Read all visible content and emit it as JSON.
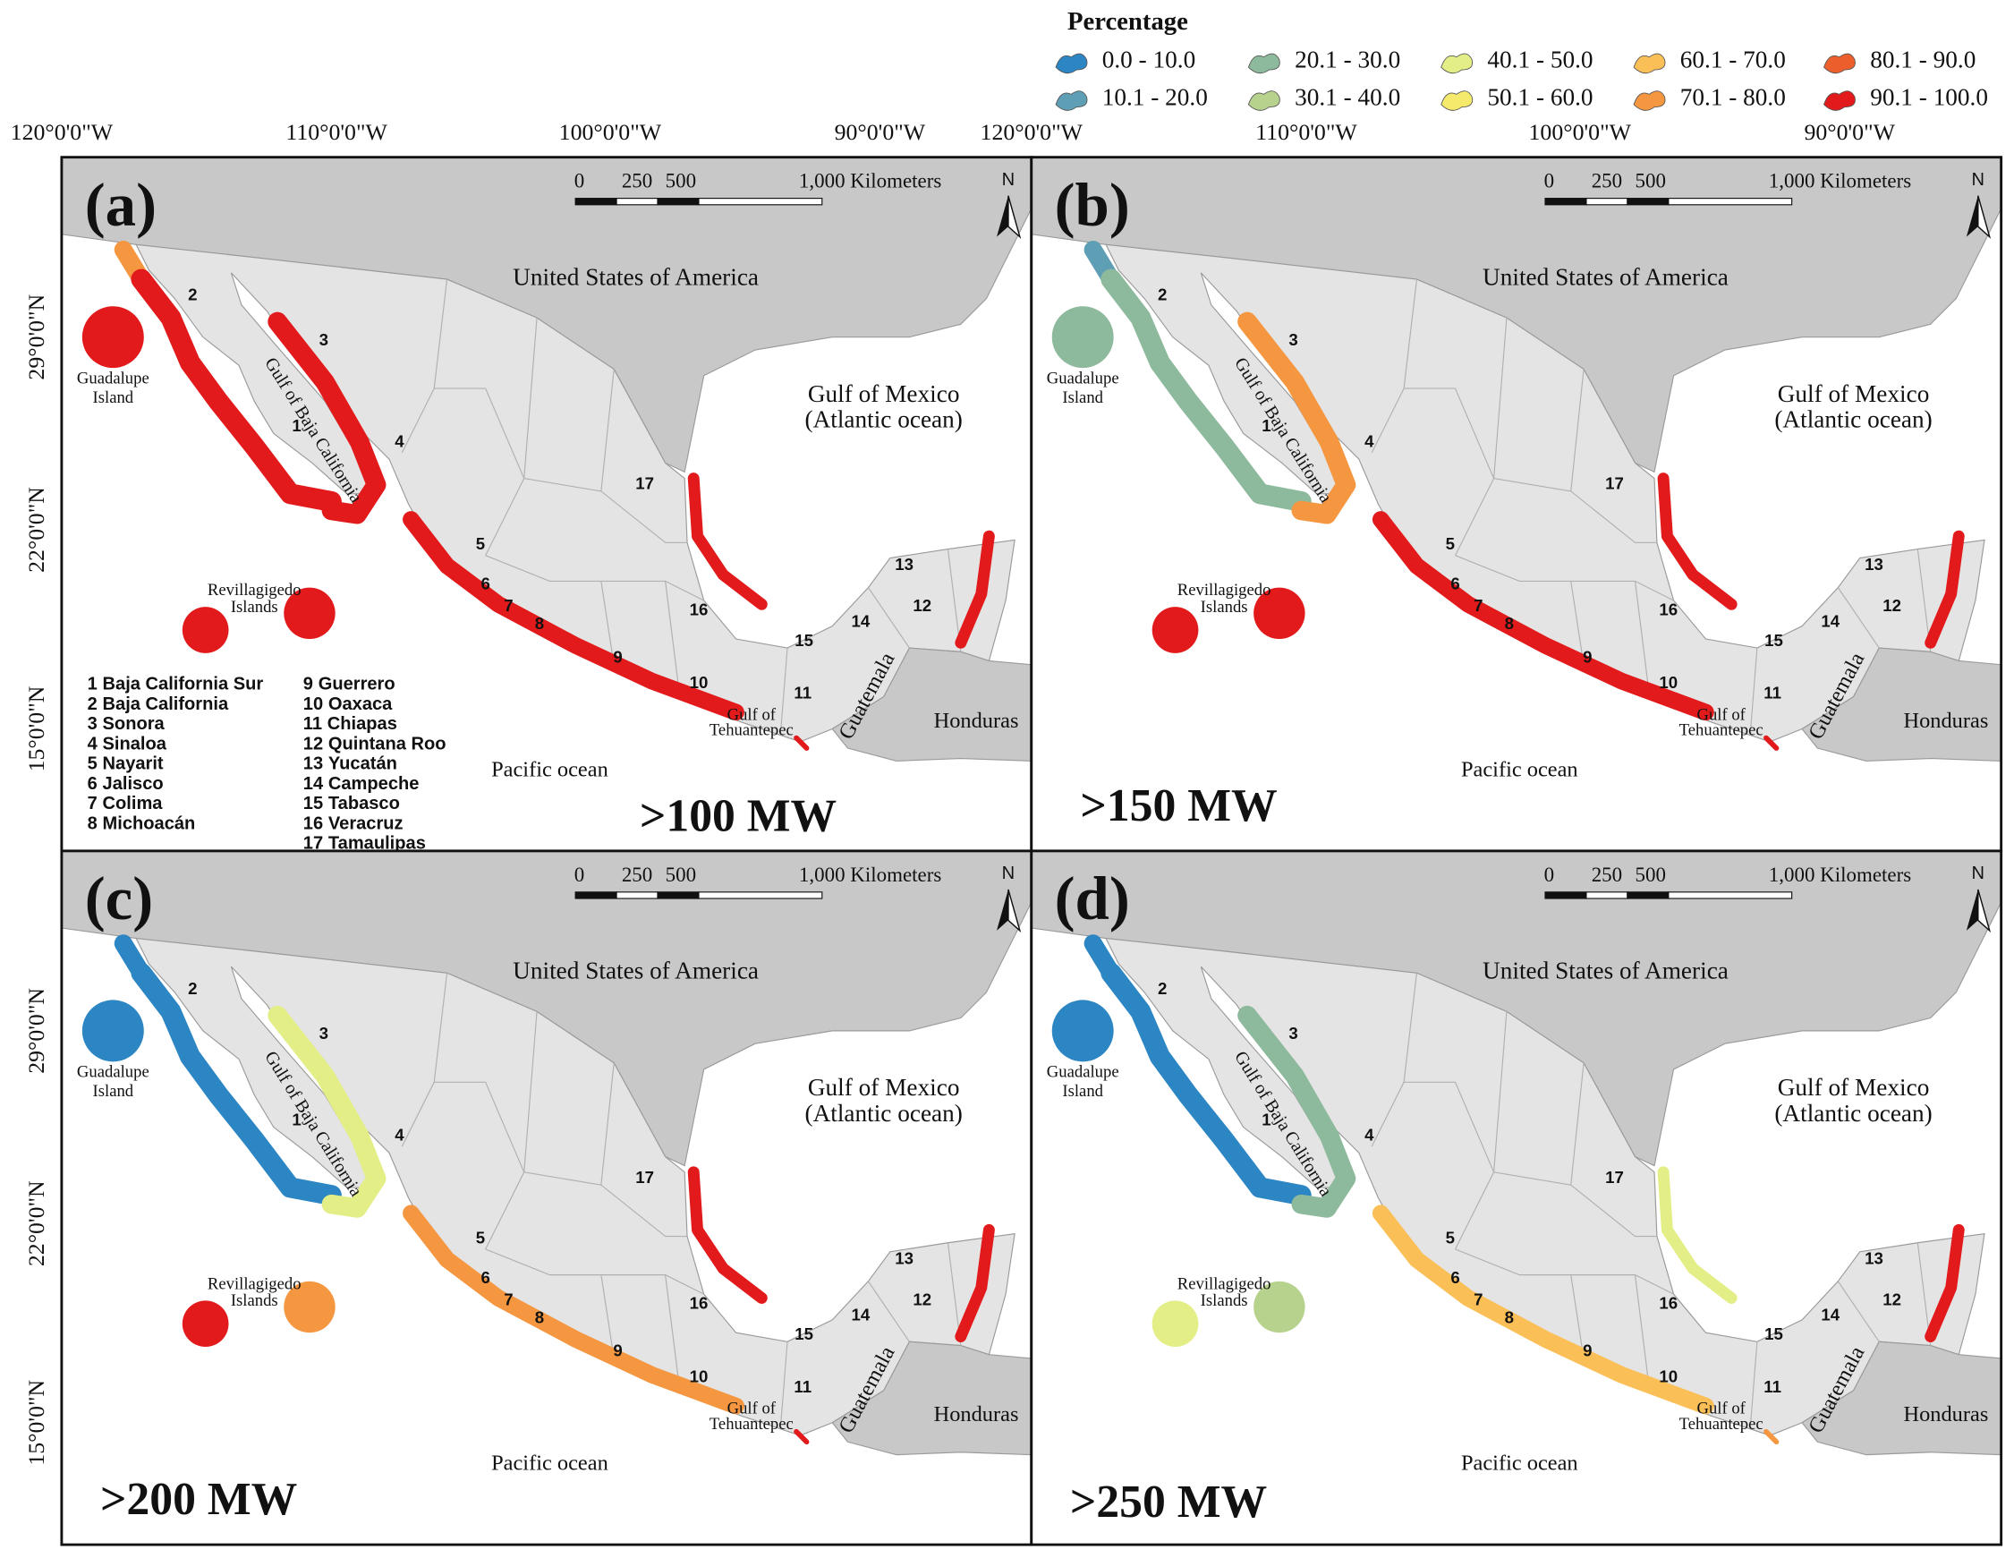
{
  "legend": {
    "title": "Percentage",
    "items": [
      {
        "label": "0.0 - 10.0",
        "color": "#2c86c4"
      },
      {
        "label": "10.1 - 20.0",
        "color": "#5f9fb5"
      },
      {
        "label": "20.1 - 30.0",
        "color": "#8db99c"
      },
      {
        "label": "30.1 - 40.0",
        "color": "#b7d28c"
      },
      {
        "label": "40.1 - 50.0",
        "color": "#e3ee86"
      },
      {
        "label": "50.1 - 60.0",
        "color": "#f6ea6c"
      },
      {
        "label": "60.1 - 70.0",
        "color": "#fbbf57"
      },
      {
        "label": "70.1 - 80.0",
        "color": "#f59640"
      },
      {
        "label": "80.1 - 90.0",
        "color": "#ec5e2c"
      },
      {
        "label": "90.1 - 100.0",
        "color": "#e31a1c"
      }
    ]
  },
  "lon_labels": [
    "120°0'0\"W",
    "110°0'0\"W",
    "100°0'0\"W",
    "90°0'0\"W"
  ],
  "lat_labels": [
    "29°0'0\"N",
    "22°0'0\"N",
    "15°0'0\"N"
  ],
  "panels": [
    {
      "letter": "(a)",
      "threshold": ">100 MW"
    },
    {
      "letter": "(b)",
      "threshold": ">150 MW"
    },
    {
      "letter": "(c)",
      "threshold": ">200 MW"
    },
    {
      "letter": "(d)",
      "threshold": ">250 MW"
    }
  ],
  "scale_bar": [
    "0",
    "250",
    "500",
    "1,000 Kilometers"
  ],
  "north": "N",
  "places": {
    "usa": "United States of America",
    "gulf_mexico": "Gulf of Mexico",
    "atlantic": "(Atlantic ocean)",
    "guadalupe": "Guadalupe",
    "island": "Island",
    "revillagigedo": "Revillagigedo",
    "islands": "Islands",
    "gulf_baja": "Gulf of Baja California",
    "pacific": "Pacific ocean",
    "gulf_of": "Gulf of",
    "tehuantepec": "Tehuantepec",
    "guatemala": "Guatemala",
    "honduras": "Honduras"
  },
  "states": [
    {
      "number": "1",
      "name": "Baja California Sur"
    },
    {
      "number": "2",
      "name": "Baja California"
    },
    {
      "number": "3",
      "name": "Sonora"
    },
    {
      "number": "4",
      "name": "Sinaloa"
    },
    {
      "number": "5",
      "name": "Nayarit"
    },
    {
      "number": "6",
      "name": "Jalisco"
    },
    {
      "number": "7",
      "name": "Colima"
    },
    {
      "number": "8",
      "name": "Michoacán"
    },
    {
      "number": "9",
      "name": "Guerrero"
    },
    {
      "number": "10",
      "name": "Oaxaca"
    },
    {
      "number": "11",
      "name": "Chiapas"
    },
    {
      "number": "12",
      "name": "Quintana Roo"
    },
    {
      "number": "13",
      "name": "Yucatán"
    },
    {
      "number": "14",
      "name": "Campeche"
    },
    {
      "number": "15",
      "name": "Tabasco"
    },
    {
      "number": "16",
      "name": "Veracruz"
    },
    {
      "number": "17",
      "name": "Tamaulipas"
    }
  ]
}
